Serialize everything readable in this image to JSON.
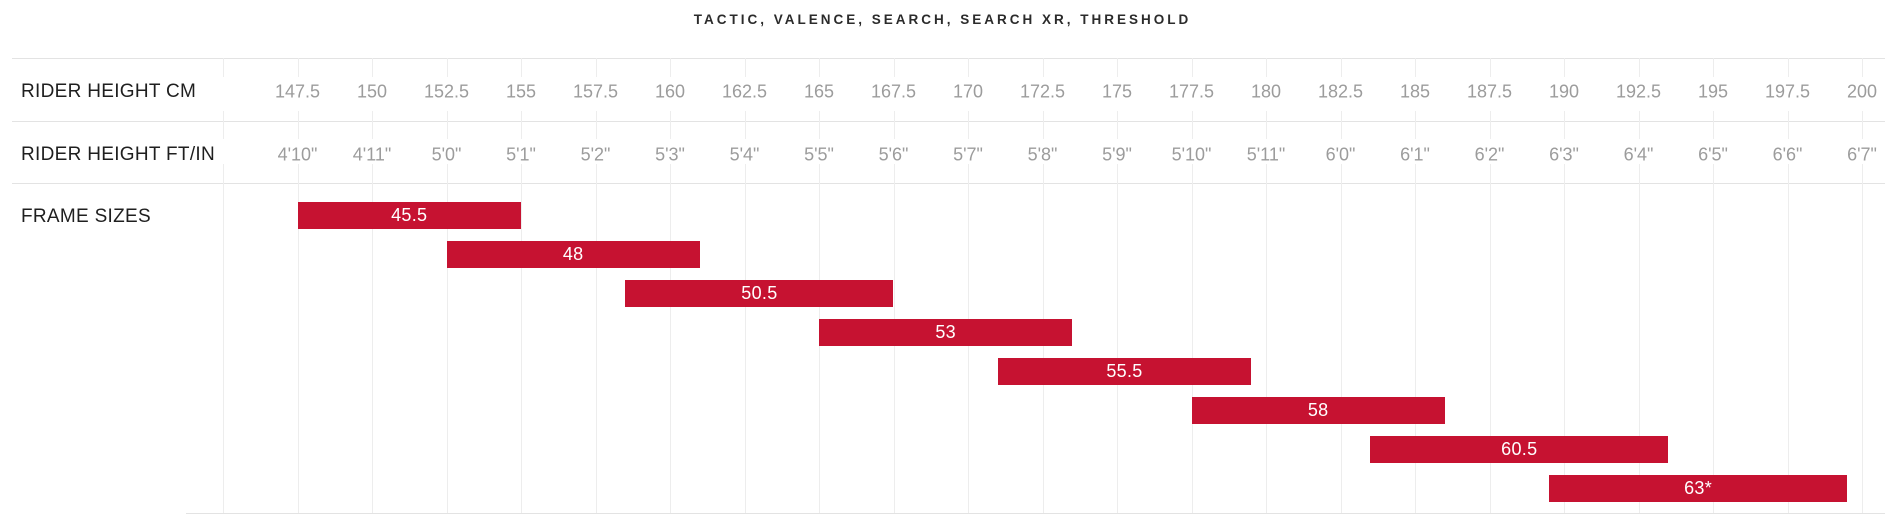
{
  "title": "TACTIC, VALENCE, SEARCH, SEARCH XR, THRESHOLD",
  "row_labels": {
    "cm": "RIDER HEIGHT CM",
    "ftin": "RIDER HEIGHT FT/IN",
    "frames": "FRAME SIZES"
  },
  "colors": {
    "bar": "#c61231",
    "bar_text": "#ffffff",
    "tick_text": "#9c9c9c",
    "label_text": "#1f1f1f",
    "gridline": "#ededed",
    "separator": "#e3e3e3"
  },
  "chart_data": {
    "type": "bar",
    "subtype": "horizontal-range-bars",
    "title": "TACTIC, VALENCE, SEARCH, SEARCH XR, THRESHOLD",
    "grid": true,
    "axes": {
      "rider_height_cm": {
        "label": "RIDER HEIGHT CM",
        "ticks": [
          147.5,
          150,
          152.5,
          155,
          157.5,
          160,
          162.5,
          165,
          167.5,
          170,
          172.5,
          175,
          177.5,
          180,
          182.5,
          185,
          187.5,
          190,
          192.5,
          195,
          197.5,
          200
        ]
      },
      "rider_height_ftin": {
        "label": "RIDER HEIGHT FT/IN",
        "ticks": [
          "4'10\"",
          "4'11\"",
          "5'0\"",
          "5'1\"",
          "5'2\"",
          "5'3\"",
          "5'4\"",
          "5'5\"",
          "5'6\"",
          "5'7\"",
          "5'8\"",
          "5'9\"",
          "5'10\"",
          "5'11\"",
          "6'0\"",
          "6'1\"",
          "6'2\"",
          "6'3\"",
          "6'4\"",
          "6'5\"",
          "6'6\"",
          "6'7\""
        ]
      }
    },
    "series_label": "FRAME SIZES",
    "xlim_cm": [
      145,
      201.25
    ],
    "bars": [
      {
        "label": "45.5",
        "min_cm": 147.5,
        "max_cm": 155.0
      },
      {
        "label": "48",
        "min_cm": 152.5,
        "max_cm": 161.0
      },
      {
        "label": "50.5",
        "min_cm": 158.5,
        "max_cm": 167.5
      },
      {
        "label": "53",
        "min_cm": 165.0,
        "max_cm": 173.5
      },
      {
        "label": "55.5",
        "min_cm": 171.0,
        "max_cm": 179.5
      },
      {
        "label": "58",
        "min_cm": 177.5,
        "max_cm": 186.0
      },
      {
        "label": "60.5",
        "min_cm": 183.5,
        "max_cm": 193.5
      },
      {
        "label": "63*",
        "min_cm": 189.5,
        "max_cm": 199.5
      }
    ]
  }
}
